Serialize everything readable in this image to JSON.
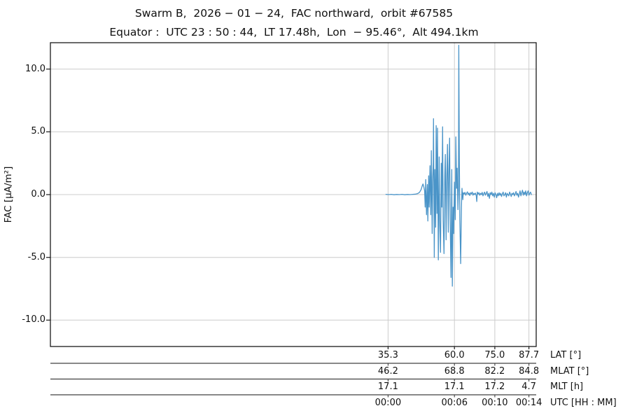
{
  "figure": {
    "background": "#ffffff",
    "frame_color": "#1a1a1a",
    "separator_color": "#404040"
  },
  "chart_data": {
    "type": "line",
    "title": "Swarm B,  2026 − 01 − 24,  FAC northward,  orbit #67585",
    "subtitle": "Equator :  UTC 23 : 50 : 44,  LT 17.48h,  Lon  − 95.46°,  Alt 494.1km",
    "ylabel": "FAC [µA/m²]",
    "line_color": "#4a94c8",
    "grid_color": "#cccccc",
    "grid": true,
    "legend": "none",
    "ylim": [
      -12.1,
      12.1
    ],
    "xlim_lat": [
      -90.3,
      90.4
    ],
    "ytick_values": [
      10,
      5,
      0,
      -5,
      -10
    ],
    "ytick_labels": [
      "10.0",
      "5.0",
      "0.0",
      "-5.0",
      "-10.0"
    ],
    "xticks": {
      "lat_values": [
        35.3,
        60.0,
        75.0,
        87.7
      ],
      "rows": [
        {
          "label": "LAT [°]",
          "values": [
            "35.3",
            "60.0",
            "75.0",
            "87.7"
          ]
        },
        {
          "label": "MLAT [°]",
          "values": [
            "46.2",
            "68.8",
            "82.2",
            "84.8"
          ]
        },
        {
          "label": "MLT [h]",
          "values": [
            "17.1",
            "17.1",
            "17.2",
            "4.7"
          ]
        },
        {
          "label": "UTC [HH : MM]",
          "values": [
            "00:00",
            "00:06",
            "00:10",
            "00:14"
          ]
        }
      ]
    },
    "series": [
      {
        "name": "FAC northward",
        "x_unit": "LAT [°]",
        "y_unit": "µA/m²",
        "points": [
          [
            34.5,
            0.02
          ],
          [
            35.5,
            0
          ],
          [
            36.5,
            0.02
          ],
          [
            37.5,
            -0.01
          ],
          [
            38.5,
            0.01
          ],
          [
            39.5,
            0
          ],
          [
            40.5,
            0.02
          ],
          [
            41.5,
            -0.01
          ],
          [
            42.5,
            0.01
          ],
          [
            43.5,
            0
          ],
          [
            44.5,
            0.02
          ],
          [
            45.5,
            0.04
          ],
          [
            46.3,
            0.08
          ],
          [
            47,
            0.18
          ],
          [
            47.6,
            0.4
          ],
          [
            48,
            0.7
          ],
          [
            48.3,
            0.85
          ],
          [
            48.6,
            0.6
          ],
          [
            48.9,
            0.3
          ],
          [
            49.1,
            -1
          ],
          [
            49.3,
            1.2
          ],
          [
            49.6,
            -1.6
          ],
          [
            49.9,
            0.8
          ],
          [
            50.1,
            -2.1
          ],
          [
            50.4,
            1.5
          ],
          [
            50.6,
            -1
          ],
          [
            50.9,
            2.3
          ],
          [
            51.2,
            -1.6
          ],
          [
            51.4,
            3.5
          ],
          [
            51.7,
            -3.1
          ],
          [
            51.9,
            1
          ],
          [
            52.1,
            2.5
          ],
          [
            52.2,
            6.05
          ],
          [
            52.4,
            -2
          ],
          [
            52.5,
            -5
          ],
          [
            52.7,
            2
          ],
          [
            53,
            -2.6
          ],
          [
            53.2,
            5.5
          ],
          [
            53.5,
            -1.5
          ],
          [
            53.7,
            5.3
          ],
          [
            54,
            -5.2
          ],
          [
            54.3,
            3
          ],
          [
            54.5,
            -2
          ],
          [
            54.8,
            -4.6
          ],
          [
            55.1,
            2.5
          ],
          [
            55.3,
            -1
          ],
          [
            55.6,
            5.4
          ],
          [
            55.8,
            -2
          ],
          [
            56.1,
            -4.7
          ],
          [
            56.4,
            1.5
          ],
          [
            56.6,
            3.2
          ],
          [
            56.9,
            -3.6
          ],
          [
            57.1,
            1
          ],
          [
            57.4,
            4
          ],
          [
            57.7,
            -3
          ],
          [
            57.9,
            1.5
          ],
          [
            58.2,
            4.5
          ],
          [
            58.4,
            -2
          ],
          [
            58.7,
            -6.6
          ],
          [
            59,
            2
          ],
          [
            59.2,
            -7.3
          ],
          [
            59.5,
            -1
          ],
          [
            59.7,
            -3.1
          ],
          [
            60,
            1
          ],
          [
            60.3,
            -2
          ],
          [
            60.5,
            4.6
          ],
          [
            60.8,
            0.5
          ],
          [
            61,
            2.1
          ],
          [
            61.3,
            -1.2
          ],
          [
            61.5,
            0.4
          ],
          [
            61.6,
            11.9
          ],
          [
            61.8,
            3
          ],
          [
            62,
            -2
          ],
          [
            62.3,
            -5.5
          ],
          [
            62.6,
            -1
          ],
          [
            62.8,
            0.5
          ],
          [
            63.1,
            -0.4
          ],
          [
            63.3,
            0.15
          ],
          [
            63.6,
            0.05
          ],
          [
            63.9,
            0.18
          ],
          [
            64.2,
            -0.05
          ],
          [
            64.5,
            0.1
          ],
          [
            64.8,
            0.22
          ],
          [
            65.1,
            0
          ],
          [
            65.4,
            0.12
          ],
          [
            65.7,
            -0.08
          ],
          [
            66,
            0.15
          ],
          [
            66.3,
            0.05
          ],
          [
            66.6,
            0.2
          ],
          [
            66.9,
            -0.05
          ],
          [
            67.2,
            0.1
          ],
          [
            67.5,
            0
          ],
          [
            67.8,
            0.12
          ],
          [
            68.1,
            -0.1
          ],
          [
            68.3,
            -0.55
          ],
          [
            68.5,
            0.2
          ],
          [
            68.8,
            0.05
          ],
          [
            69.1,
            0.15
          ],
          [
            69.4,
            -0.05
          ],
          [
            69.7,
            0.1
          ],
          [
            70,
            0
          ],
          [
            70.3,
            0.18
          ],
          [
            70.6,
            -0.1
          ],
          [
            70.9,
            0.08
          ],
          [
            71.2,
            0.2
          ],
          [
            71.5,
            -0.05
          ],
          [
            71.8,
            0.1
          ],
          [
            72.1,
            0.25
          ],
          [
            72.4,
            -0.15
          ],
          [
            72.7,
            0.1
          ],
          [
            73,
            -0.3
          ],
          [
            73.3,
            0.15
          ],
          [
            73.6,
            0
          ],
          [
            73.9,
            0.2
          ],
          [
            74.2,
            -0.1
          ],
          [
            74.5,
            0.1
          ],
          [
            74.8,
            -0.2
          ],
          [
            75.1,
            0.15
          ],
          [
            75.4,
            0
          ],
          [
            75.7,
            -0.25
          ],
          [
            76,
            0.1
          ],
          [
            76.3,
            -0.1
          ],
          [
            76.6,
            0.15
          ],
          [
            76.9,
            -0.05
          ],
          [
            77.2,
            0.1
          ],
          [
            77.5,
            -0.15
          ],
          [
            77.8,
            0.05
          ],
          [
            78.1,
            0.2
          ],
          [
            78.4,
            -0.1
          ],
          [
            78.7,
            0
          ],
          [
            79,
            0.15
          ],
          [
            79.3,
            -0.2
          ],
          [
            79.6,
            0.1
          ],
          [
            79.9,
            0
          ],
          [
            80.2,
            -0.1
          ],
          [
            80.5,
            0.2
          ],
          [
            80.8,
            0.05
          ],
          [
            81.1,
            -0.15
          ],
          [
            81.4,
            0.1
          ],
          [
            81.7,
            0
          ],
          [
            82,
            0.15
          ],
          [
            82.3,
            -0.1
          ],
          [
            82.6,
            0.05
          ],
          [
            82.9,
            0.25
          ],
          [
            83.2,
            -0.05
          ],
          [
            83.5,
            0.1
          ],
          [
            83.8,
            -0.2
          ],
          [
            84.1,
            0.05
          ],
          [
            84.4,
            0.3
          ],
          [
            84.7,
            -0.1
          ],
          [
            85,
            0.15
          ],
          [
            85.3,
            0.35
          ],
          [
            85.6,
            -0.05
          ],
          [
            85.9,
            0.2
          ],
          [
            86.2,
            0
          ],
          [
            86.5,
            0.3
          ],
          [
            86.8,
            -0.1
          ],
          [
            87.1,
            0.15
          ],
          [
            87.4,
            0.3
          ],
          [
            87.7,
            -0.05
          ],
          [
            88,
            0.1
          ],
          [
            88.3,
            0.2
          ],
          [
            88.6,
            0
          ]
        ]
      }
    ]
  }
}
